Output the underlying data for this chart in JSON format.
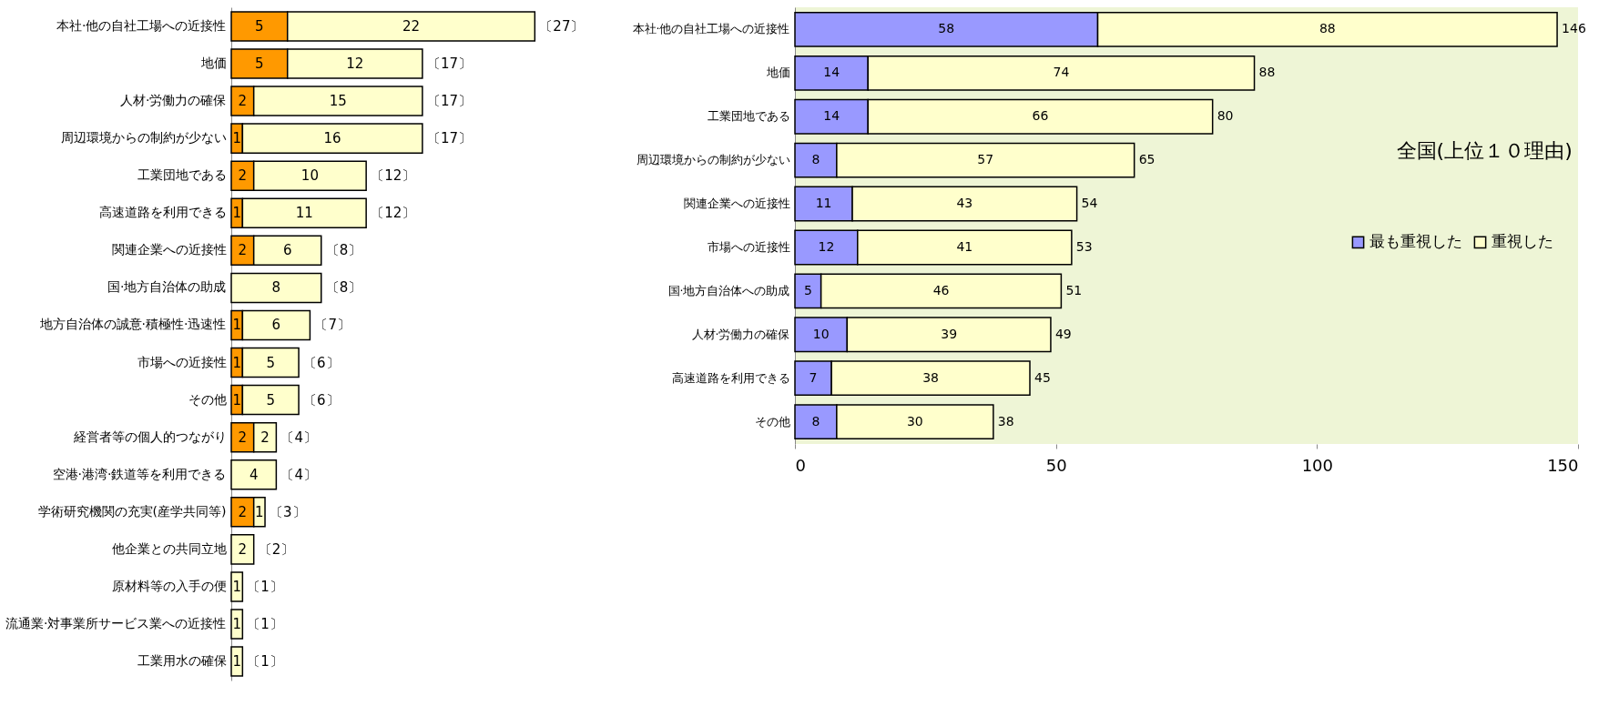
{
  "chart_data": [
    {
      "type": "bar",
      "orientation": "horizontal",
      "stacked": true,
      "data_labels": true,
      "legend": false,
      "tick_labels": "y",
      "categories": [
        "本社·他の自社工場への近接性",
        "地価",
        "人材·労働力の確保",
        "周辺環境からの制約が少ない",
        "工業団地である",
        "高速道路を利用できる",
        "関連企業への近接性",
        "国·地方自治体の助成",
        "地方自治体の誠意·積極性·迅速性",
        "市場への近接性",
        "その他",
        "経営者等の個人的つながり",
        "空港·港湾·鉄道等を利用できる",
        "学術研究機関の充実(産学共同等)",
        "他企業との共同立地",
        "原材料等の入手の便",
        "流通業·対事業所サービス業への近接性",
        "工業用水の確保"
      ],
      "series": [
        {
          "color": "#ff9900",
          "values": [
            5,
            5,
            2,
            1,
            2,
            1,
            2,
            null,
            1,
            1,
            1,
            2,
            null,
            2,
            null,
            null,
            null,
            null
          ]
        },
        {
          "color": "#ffffcc",
          "values": [
            22,
            12,
            15,
            16,
            10,
            11,
            6,
            8,
            6,
            5,
            5,
            2,
            4,
            1,
            2,
            1,
            1,
            1
          ]
        }
      ],
      "totals": [
        "〔27〕",
        "〔17〕",
        "〔17〕",
        "〔17〕",
        "〔12〕",
        "〔12〕",
        "〔8〕",
        "〔8〕",
        "〔7〕",
        "〔6〕",
        "〔6〕",
        "〔4〕",
        "〔4〕",
        "〔3〕",
        "〔2〕",
        "〔1〕",
        "〔1〕",
        "〔1〕"
      ]
    },
    {
      "type": "bar",
      "orientation": "horizontal",
      "stacked": true,
      "data_labels": true,
      "legend": "right",
      "title": "全国(上位１０理由)",
      "categories": [
        "本社·他の自社工場への近接性",
        "地価",
        "工業団地である",
        "周辺環境からの制約が少ない",
        "関連企業への近接性",
        "市場への近接性",
        "国·地方自治体への助成",
        "人材·労働力の確保",
        "高速道路を利用できる",
        "その他"
      ],
      "series": [
        {
          "name": "最も重視した",
          "color": "#9999ff",
          "values": [
            58,
            14,
            14,
            8,
            11,
            12,
            5,
            10,
            7,
            8
          ]
        },
        {
          "name": "重視した",
          "color": "#ffffcc",
          "values": [
            88,
            74,
            66,
            57,
            43,
            41,
            46,
            39,
            38,
            30
          ]
        }
      ],
      "totals": [
        "146",
        "88",
        "80",
        "65",
        "54",
        "53",
        "51",
        "49",
        "45",
        "38"
      ],
      "xlim": [
        0,
        150
      ],
      "xticks": [
        0,
        50,
        100,
        150
      ]
    }
  ]
}
